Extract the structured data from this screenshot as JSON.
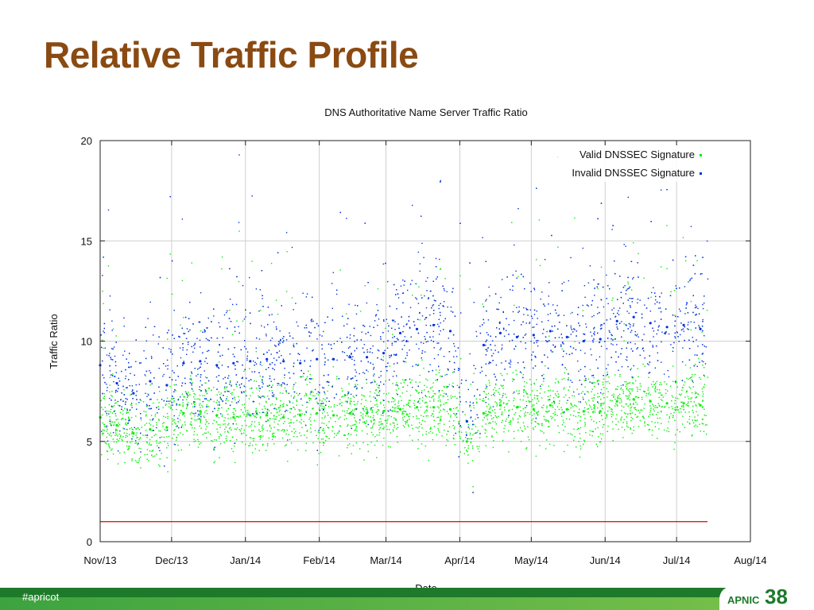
{
  "slide": {
    "title": "Relative Traffic Profile",
    "hashtag": "#apricot",
    "logo_text": "APNIC",
    "logo_number": "38"
  },
  "colors": {
    "title": "#8a4a12",
    "valid_series": "#00ee00",
    "invalid_series": "#0033dd",
    "reference_line": "#dd0000",
    "footer": "#1d7a2a"
  },
  "chart_data": {
    "type": "scatter",
    "title": "DNS Authoritative Name Server Traffic Ratio",
    "xlabel": "Date",
    "ylabel": "Traffic Ratio",
    "xlim": [
      "2013-11-01",
      "2014-08-01"
    ],
    "ylim": [
      0,
      20
    ],
    "x_ticks": [
      "Nov/13",
      "Dec/13",
      "Jan/14",
      "Feb/14",
      "Mar/14",
      "Apr/14",
      "May/14",
      "Jun/14",
      "Jul/14",
      "Aug/14"
    ],
    "y_ticks": [
      0,
      5,
      10,
      15,
      20
    ],
    "grid": true,
    "legend_position": "top-right",
    "reference_line": {
      "y": 1
    },
    "series": [
      {
        "name": "Valid DNSSEC Signature",
        "color": "#00ee00",
        "x": [
          "2013-11-01",
          "2013-11-08",
          "2013-11-15",
          "2013-11-22",
          "2013-11-29",
          "2013-12-06",
          "2013-12-13",
          "2013-12-20",
          "2013-12-27",
          "2014-01-03",
          "2014-01-10",
          "2014-01-17",
          "2014-01-24",
          "2014-01-31",
          "2014-02-07",
          "2014-02-14",
          "2014-02-21",
          "2014-02-28",
          "2014-03-07",
          "2014-03-14",
          "2014-03-21",
          "2014-03-28",
          "2014-04-04",
          "2014-04-11",
          "2014-04-18",
          "2014-04-25",
          "2014-05-02",
          "2014-05-09",
          "2014-05-16",
          "2014-05-23",
          "2014-05-30",
          "2014-06-06",
          "2014-06-13",
          "2014-06-20",
          "2014-06-27",
          "2014-07-04",
          "2014-07-11"
        ],
        "y": [
          6.2,
          5.8,
          5.4,
          5.6,
          5.7,
          6.4,
          6.5,
          6.3,
          6.2,
          6.3,
          6.3,
          6.2,
          6.3,
          6.4,
          6.3,
          6.4,
          6.4,
          6.5,
          6.6,
          6.7,
          6.7,
          6.6,
          5.0,
          6.4,
          6.8,
          6.7,
          6.6,
          6.8,
          6.6,
          6.5,
          6.5,
          7.0,
          7.1,
          7.0,
          6.9,
          6.9,
          6.8
        ]
      },
      {
        "name": "Invalid DNSSEC Signature",
        "color": "#0033dd",
        "x": [
          "2013-11-01",
          "2013-11-08",
          "2013-11-15",
          "2013-11-22",
          "2013-11-29",
          "2013-12-06",
          "2013-12-13",
          "2013-12-20",
          "2013-12-27",
          "2014-01-03",
          "2014-01-10",
          "2014-01-17",
          "2014-01-24",
          "2014-01-31",
          "2014-02-07",
          "2014-02-14",
          "2014-02-21",
          "2014-02-28",
          "2014-03-07",
          "2014-03-14",
          "2014-03-21",
          "2014-03-28",
          "2014-04-04",
          "2014-04-11",
          "2014-04-18",
          "2014-04-25",
          "2014-05-02",
          "2014-05-09",
          "2014-05-16",
          "2014-05-23",
          "2014-05-30",
          "2014-06-06",
          "2014-06-13",
          "2014-06-20",
          "2014-06-27",
          "2014-07-04",
          "2014-07-11"
        ],
        "y": [
          8.8,
          7.9,
          7.4,
          8.0,
          7.8,
          8.9,
          9.0,
          8.8,
          8.9,
          9.0,
          9.1,
          9.0,
          8.9,
          9.1,
          9.1,
          9.2,
          9.2,
          9.4,
          10.4,
          10.6,
          10.8,
          10.5,
          6.0,
          9.8,
          10.4,
          10.2,
          10.3,
          10.5,
          10.2,
          10.0,
          10.1,
          11.0,
          11.2,
          10.9,
          10.7,
          10.8,
          10.6
        ]
      }
    ]
  }
}
